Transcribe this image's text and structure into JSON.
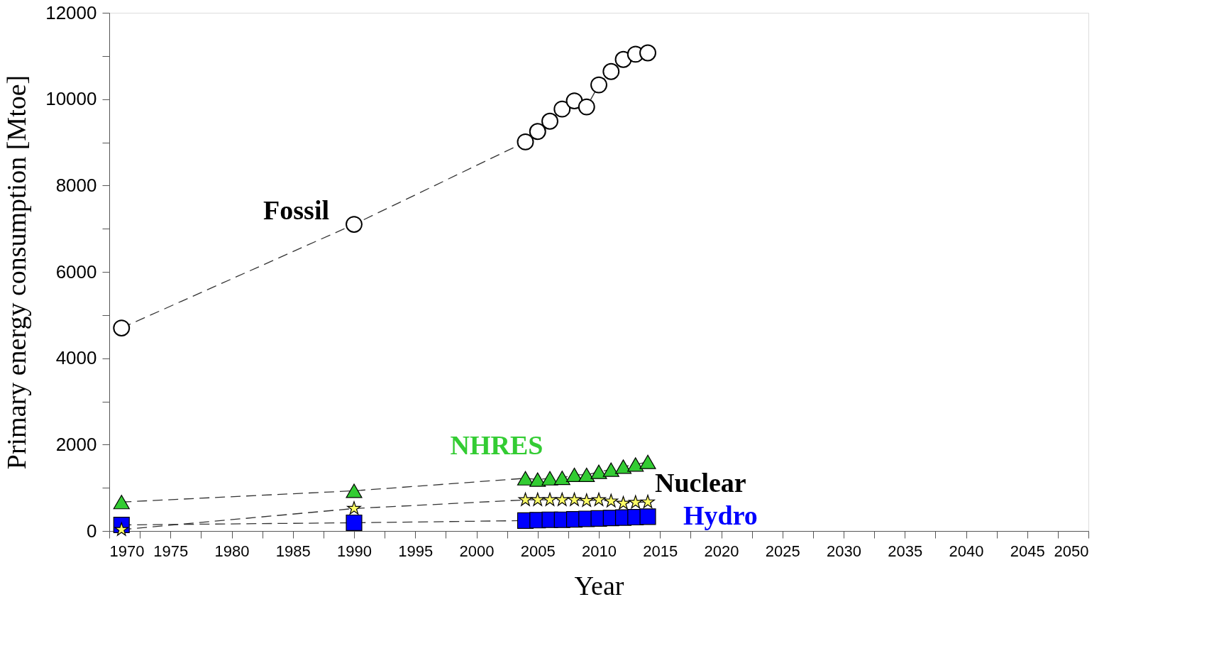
{
  "chart_data": {
    "type": "line",
    "xlabel": "Year",
    "ylabel": "Primary energy consumption [Mtoe]",
    "xlim": [
      1970,
      2050
    ],
    "ylim": [
      0,
      12000
    ],
    "xticks": [
      1970,
      {
        "value": 1972.5,
        "label": null
      },
      1975,
      {
        "value": 1977.5,
        "label": null
      },
      1980,
      {
        "value": 1982.5,
        "label": null
      },
      1985,
      {
        "value": 1987.5,
        "label": null
      },
      1990,
      {
        "value": 1992.5,
        "label": null
      },
      1995,
      {
        "value": 1997.5,
        "label": null
      },
      2000,
      {
        "value": 2002.5,
        "label": null
      },
      2005,
      {
        "value": 2007.5,
        "label": null
      },
      2010,
      {
        "value": 2012.5,
        "label": null
      },
      2015,
      {
        "value": 2017.5,
        "label": null
      },
      2020,
      {
        "value": 2022.5,
        "label": null
      },
      2025,
      {
        "value": 2027.5,
        "label": null
      },
      2030,
      {
        "value": 2032.5,
        "label": null
      },
      2035,
      {
        "value": 2037.5,
        "label": null
      },
      2040,
      {
        "value": 2042.5,
        "label": null
      },
      2045,
      {
        "value": 2047.5,
        "label": null
      },
      2050
    ],
    "yticks": [
      0,
      {
        "value": 1000,
        "label": null
      },
      2000,
      {
        "value": 3000,
        "label": null
      },
      4000,
      {
        "value": 5000,
        "label": null
      },
      6000,
      {
        "value": 7000,
        "label": null
      },
      8000,
      {
        "value": 9000,
        "label": null
      },
      10000,
      {
        "value": 11000,
        "label": null
      },
      12000
    ],
    "x": [
      1971,
      1990,
      2004,
      2005,
      2006,
      2007,
      2008,
      2009,
      2010,
      2011,
      2012,
      2013,
      2014
    ],
    "line_style": "dashed",
    "grid": false,
    "series": [
      {
        "name": "Fossil",
        "color": "#000000",
        "marker": "circle",
        "values": [
          4700,
          7100,
          9010,
          9250,
          9490,
          9770,
          9960,
          9820,
          10330,
          10640,
          10920,
          11040,
          11070
        ]
      },
      {
        "name": "NHRES",
        "color": "#33cc33",
        "marker": "triangle",
        "values": [
          670,
          930,
          1220,
          1190,
          1220,
          1230,
          1300,
          1300,
          1370,
          1420,
          1490,
          1540,
          1600
        ]
      },
      {
        "name": "Nuclear",
        "color": "#ffff66",
        "marker": "star",
        "values": [
          30,
          520,
          720,
          720,
          720,
          720,
          720,
          700,
          720,
          690,
          640,
          660,
          670
        ]
      },
      {
        "name": "Hydro",
        "color": "#0000ff",
        "marker": "square",
        "values": [
          140,
          190,
          240,
          250,
          260,
          260,
          270,
          280,
          290,
          300,
          310,
          320,
          330
        ]
      }
    ]
  }
}
